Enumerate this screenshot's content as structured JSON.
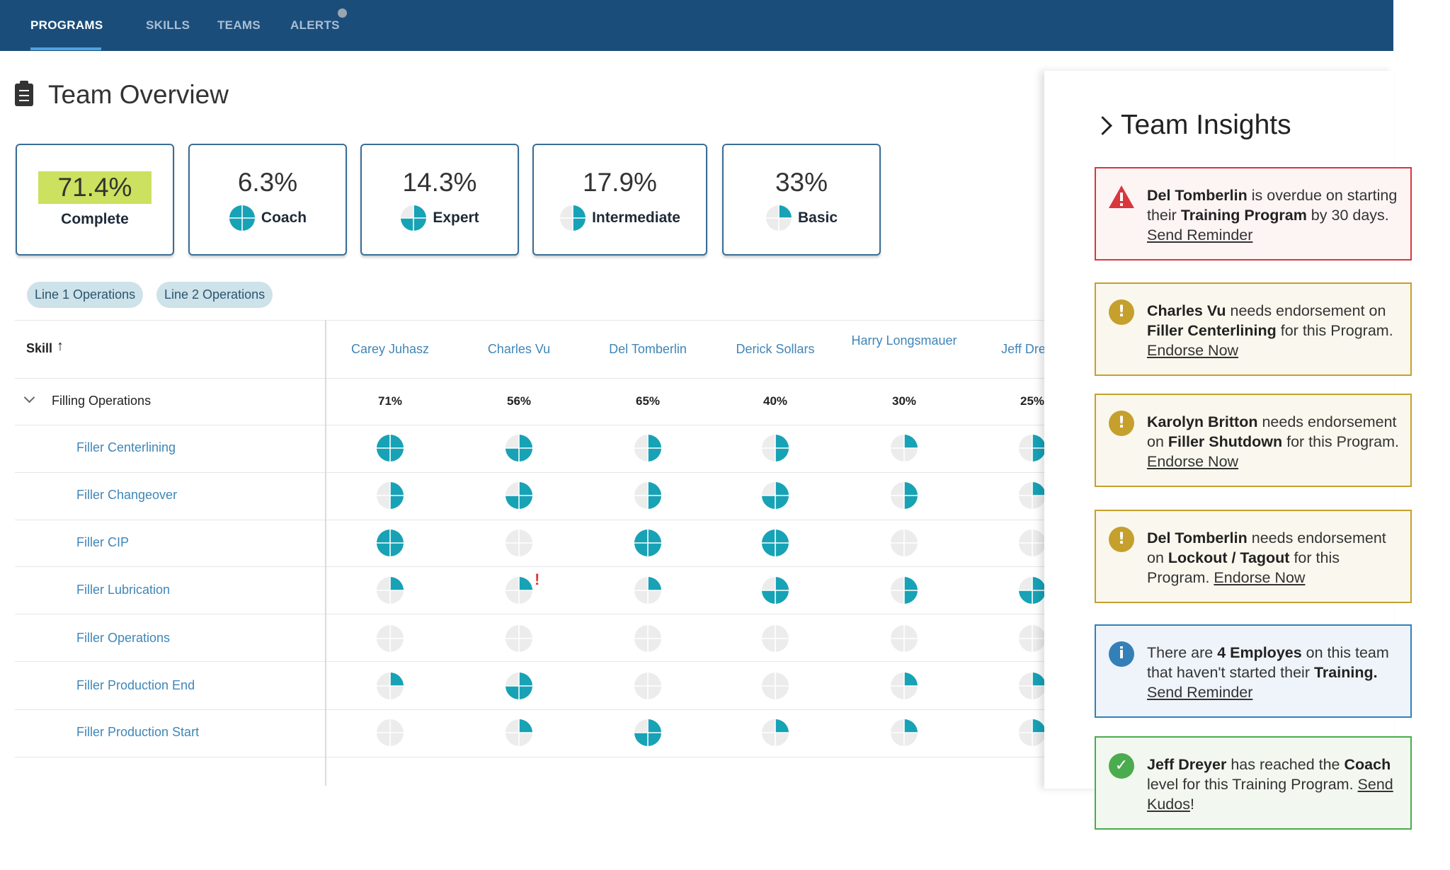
{
  "nav": {
    "items": [
      "PROGRAMS",
      "SKILLS",
      "TEAMS",
      "ALERTS"
    ],
    "active": 0
  },
  "header": {
    "title": "Team Overview"
  },
  "summary": [
    {
      "value": "71.4%",
      "label": "Complete"
    },
    {
      "value": "6.3%",
      "label": "Coach",
      "level": 4
    },
    {
      "value": "14.3%",
      "label": "Expert",
      "level": 3
    },
    {
      "value": "17.9%",
      "label": "Intermediate",
      "level": 2
    },
    {
      "value": "33%",
      "label": "Basic",
      "level": 1
    }
  ],
  "filters": [
    "Line 1 Operations",
    "Line 2 Operations"
  ],
  "table": {
    "skill_header": "Skill",
    "columns": [
      "Carey Juhasz",
      "Charles Vu",
      "Del Tomberlin",
      "Derick Sollars",
      "Harry Longsmauer",
      "Jeff Dreyer"
    ],
    "group": {
      "name": "Filling Operations",
      "percents": [
        "71%",
        "56%",
        "65%",
        "40%",
        "30%",
        "25%"
      ]
    },
    "rows": [
      {
        "skill": "Filler Centerlining",
        "levels": [
          4,
          3,
          2,
          2,
          1,
          2
        ]
      },
      {
        "skill": "Filler Changeover",
        "levels": [
          2,
          3,
          2,
          3,
          2,
          1
        ]
      },
      {
        "skill": "Filler CIP",
        "levels": [
          4,
          0,
          4,
          4,
          0,
          0
        ]
      },
      {
        "skill": "Filler Lubrication",
        "levels": [
          1,
          1,
          1,
          3,
          2,
          3
        ]
      },
      {
        "skill": "Filler Operations",
        "levels": [
          0,
          0,
          0,
          0,
          0,
          0
        ]
      },
      {
        "skill": "Filler Production End",
        "levels": [
          1,
          3,
          0,
          0,
          1,
          1
        ]
      },
      {
        "skill": "Filler Production Start",
        "levels": [
          0,
          1,
          3,
          1,
          1,
          1
        ]
      }
    ]
  },
  "insights": {
    "title": "Team Insights",
    "items": [
      {
        "kind": "error",
        "parts": [
          {
            "text": "Del Tomberlin",
            "style": "bold"
          },
          {
            "text": " is overdue on starting their "
          },
          {
            "text": "Training Program",
            "style": "bold"
          },
          {
            "text": " by 30 days. "
          },
          {
            "text": "Send Reminder",
            "style": "link"
          }
        ]
      },
      {
        "kind": "warning",
        "parts": [
          {
            "text": "Charles Vu",
            "style": "bold"
          },
          {
            "text": " needs endorsement on "
          },
          {
            "text": "Filler Centerlining",
            "style": "bold"
          },
          {
            "text": " for this Program. "
          },
          {
            "text": "Endorse Now",
            "style": "link"
          }
        ]
      },
      {
        "kind": "warning",
        "parts": [
          {
            "text": "Karolyn Britton",
            "style": "bold"
          },
          {
            "text": " needs endorsement on "
          },
          {
            "text": "Filler Shutdown",
            "style": "bold"
          },
          {
            "text": " for this Program. "
          },
          {
            "text": "Endorse Now",
            "style": "link"
          }
        ]
      },
      {
        "kind": "warning",
        "parts": [
          {
            "text": "Del Tomberlin",
            "style": "bold"
          },
          {
            "text": " needs endorsement on "
          },
          {
            "text": "Lockout / Tagout",
            "style": "bold"
          },
          {
            "text": " for this Program. "
          },
          {
            "text": "Endorse Now",
            "style": "link"
          }
        ]
      },
      {
        "kind": "info",
        "parts": [
          {
            "text": "There are "
          },
          {
            "text": "4 Employes",
            "style": "bold"
          },
          {
            "text": " on this team that haven't started their "
          },
          {
            "text": "Training.",
            "style": "bold"
          },
          {
            "text": " "
          },
          {
            "text": "Send Reminder",
            "style": "link"
          }
        ]
      },
      {
        "kind": "success",
        "parts": [
          {
            "text": "Jeff Dreyer",
            "style": "bold"
          },
          {
            "text": " has reached the "
          },
          {
            "text": "Coach",
            "style": "bold"
          },
          {
            "text": " level for this Training Program. "
          },
          {
            "text": "Send Kudos",
            "style": "link"
          },
          {
            "text": "!"
          }
        ]
      }
    ]
  }
}
